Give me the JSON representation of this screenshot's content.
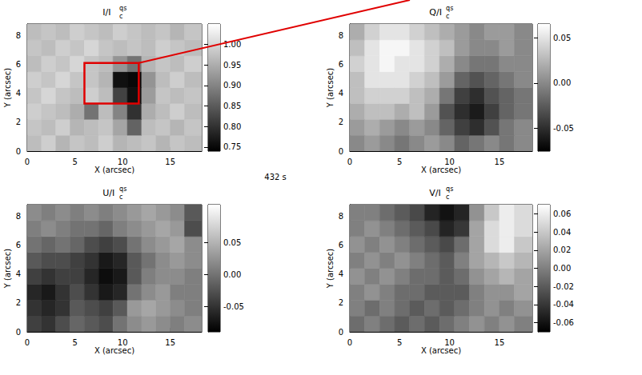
{
  "caption": "432 s",
  "chart_data": [
    {
      "type": "heatmap",
      "title": {
        "text": "I/I",
        "sub": "c",
        "sup": "qs"
      },
      "x_label": "X (arcsec)",
      "y_label": "Y (arcsec)",
      "color": "gray",
      "xlim": [
        0,
        18.3
      ],
      "ylim": [
        0,
        8.8
      ],
      "xticks": [
        0,
        5,
        10,
        15
      ],
      "yticks": [
        0,
        2,
        4,
        6,
        8
      ],
      "x_edges": [
        0,
        1.5,
        3,
        4.5,
        6,
        7.5,
        9,
        10.5,
        12,
        13.5,
        15,
        16.5,
        18.3
      ],
      "y_edges": [
        0,
        1.1,
        2.2,
        3.3,
        4.4,
        5.5,
        6.6,
        7.7,
        8.8
      ],
      "cells": [
        [
          0.97,
          0.99,
          0.96,
          0.98,
          0.97,
          0.99,
          0.96,
          0.97,
          0.98,
          0.96,
          0.98,
          0.97
        ],
        [
          0.98,
          0.97,
          0.99,
          0.96,
          0.97,
          0.98,
          0.94,
          0.86,
          0.97,
          0.98,
          0.96,
          0.98
        ],
        [
          0.99,
          0.98,
          0.97,
          0.95,
          0.88,
          0.97,
          0.9,
          0.8,
          0.95,
          0.97,
          0.99,
          0.97
        ],
        [
          0.98,
          1.0,
          0.98,
          0.97,
          0.99,
          0.97,
          0.82,
          0.76,
          0.93,
          0.98,
          0.97,
          0.98
        ],
        [
          0.99,
          0.98,
          1.0,
          0.98,
          0.98,
          0.96,
          0.76,
          0.75,
          0.92,
          0.97,
          0.99,
          0.97
        ],
        [
          0.97,
          0.99,
          0.98,
          1.0,
          0.98,
          0.97,
          0.92,
          0.88,
          0.96,
          0.98,
          0.97,
          0.99
        ],
        [
          0.98,
          0.97,
          0.99,
          0.98,
          1.0,
          0.98,
          0.97,
          0.98,
          0.97,
          0.99,
          0.98,
          0.97
        ],
        [
          0.97,
          0.98,
          0.97,
          0.99,
          0.98,
          0.97,
          0.99,
          0.98,
          0.97,
          0.98,
          0.96,
          0.98
        ]
      ],
      "colorbar": {
        "range": [
          0.74,
          1.05
        ],
        "ticks": [
          0.75,
          {
            "value": 0.8,
            "label": "0.80"
          },
          0.85,
          {
            "value": 0.9,
            "label": "0.90"
          },
          0.95,
          {
            "value": 1,
            "label": "1.00"
          }
        ]
      },
      "annotation": {
        "type": "box",
        "x": [
          6,
          11.7
        ],
        "y": [
          3.3,
          6.1
        ],
        "color": "#e00000"
      }
    },
    {
      "type": "heatmap",
      "title": {
        "text": "Q/I",
        "sub": "c",
        "sup": "qs"
      },
      "x_label": "X (arcsec)",
      "y_label": "Y (arcsec)",
      "color": "gray",
      "xlim": [
        0,
        18.3
      ],
      "ylim": [
        0,
        8.8
      ],
      "xticks": [
        0,
        5,
        10,
        15
      ],
      "yticks": [
        0,
        2,
        4,
        6,
        8
      ],
      "x_edges": [
        0,
        1.5,
        3,
        4.5,
        6,
        7.5,
        9,
        10.5,
        12,
        13.5,
        15,
        16.5,
        18.3
      ],
      "y_edges": [
        0,
        1.1,
        2.2,
        3.3,
        4.4,
        5.5,
        6.6,
        7.7,
        8.8
      ],
      "cells": [
        [
          0.0,
          0.01,
          0.0,
          -0.01,
          0.0,
          0.01,
          0.0,
          -0.02,
          -0.01,
          0.0,
          -0.01,
          0.0
        ],
        [
          0.01,
          0.02,
          0.01,
          0.0,
          0.01,
          0.0,
          -0.02,
          -0.04,
          -0.05,
          -0.03,
          -0.01,
          0.0
        ],
        [
          0.02,
          0.03,
          0.03,
          0.02,
          0.03,
          0.01,
          -0.03,
          -0.05,
          -0.06,
          -0.04,
          -0.02,
          -0.01
        ],
        [
          0.03,
          0.04,
          0.04,
          0.04,
          0.03,
          0.02,
          -0.01,
          -0.04,
          -0.05,
          -0.03,
          -0.02,
          -0.01
        ],
        [
          0.03,
          0.05,
          0.05,
          0.05,
          0.04,
          0.03,
          0.01,
          -0.02,
          -0.03,
          -0.02,
          -0.01,
          0.0
        ],
        [
          0.04,
          0.05,
          0.06,
          0.05,
          0.05,
          0.04,
          0.02,
          0.0,
          -0.01,
          -0.01,
          0.0,
          0.0
        ],
        [
          0.03,
          0.05,
          0.06,
          0.06,
          0.05,
          0.04,
          0.03,
          0.01,
          0.0,
          0.0,
          0.01,
          0.0
        ],
        [
          0.02,
          0.04,
          0.05,
          0.05,
          0.04,
          0.03,
          0.02,
          0.01,
          0.0,
          0.01,
          0.01,
          0.0
        ]
      ],
      "colorbar": {
        "range": [
          -0.075,
          0.065
        ],
        "ticks": [
          -0.05,
          {
            "value": 0,
            "label": "0.00"
          },
          0.05
        ]
      }
    },
    {
      "type": "heatmap",
      "title": {
        "text": "U/I",
        "sub": "c",
        "sup": "qs"
      },
      "x_label": "X (arcsec)",
      "y_label": "Y (arcsec)",
      "color": "gray",
      "xlim": [
        0,
        18.3
      ],
      "ylim": [
        0,
        8.8
      ],
      "xticks": [
        0,
        5,
        10,
        15
      ],
      "yticks": [
        0,
        2,
        4,
        6,
        8
      ],
      "x_edges": [
        0,
        1.5,
        3,
        4.5,
        6,
        7.5,
        9,
        10.5,
        12,
        13.5,
        15,
        16.5,
        18.3
      ],
      "y_edges": [
        0,
        1.1,
        2.2,
        3.3,
        4.4,
        5.5,
        6.6,
        7.7,
        8.8
      ],
      "cells": [
        [
          -0.04,
          -0.05,
          -0.03,
          -0.01,
          -0.02,
          -0.03,
          0.0,
          0.02,
          0.03,
          0.02,
          0.01,
          0.02
        ],
        [
          -0.05,
          -0.06,
          -0.05,
          -0.02,
          -0.03,
          -0.04,
          -0.02,
          0.03,
          0.04,
          0.03,
          0.02,
          0.01
        ],
        [
          -0.06,
          -0.07,
          -0.05,
          -0.03,
          -0.05,
          -0.07,
          -0.06,
          0.0,
          0.02,
          0.03,
          0.01,
          0.01
        ],
        [
          -0.04,
          -0.05,
          -0.04,
          -0.04,
          -0.06,
          -0.08,
          -0.07,
          -0.02,
          0.01,
          0.02,
          0.02,
          0.01
        ],
        [
          -0.02,
          -0.03,
          -0.03,
          -0.04,
          -0.05,
          -0.07,
          -0.06,
          -0.02,
          0.0,
          0.02,
          0.03,
          0.02
        ],
        [
          0.0,
          -0.01,
          0.0,
          -0.01,
          -0.03,
          -0.04,
          -0.03,
          0.0,
          0.02,
          0.03,
          0.04,
          0.02
        ],
        [
          0.01,
          0.02,
          0.01,
          0.0,
          0.0,
          -0.01,
          0.01,
          0.02,
          0.03,
          0.04,
          0.03,
          -0.03
        ],
        [
          0.02,
          0.01,
          0.02,
          0.01,
          0.02,
          0.01,
          0.02,
          0.03,
          0.04,
          0.03,
          0.02,
          -0.02
        ]
      ],
      "colorbar": {
        "range": [
          -0.09,
          0.11
        ],
        "ticks": [
          -0.05,
          {
            "value": 0,
            "label": "0.00"
          },
          0.05
        ]
      }
    },
    {
      "type": "heatmap",
      "title": {
        "text": "V/I",
        "sub": "c",
        "sup": "qs"
      },
      "x_label": "X (arcsec)",
      "y_label": "Y (arcsec)",
      "color": "gray",
      "xlim": [
        0,
        18.3
      ],
      "ylim": [
        0,
        8.8
      ],
      "xticks": [
        0,
        5,
        10,
        15
      ],
      "yticks": [
        0,
        2,
        4,
        6,
        8
      ],
      "x_edges": [
        0,
        1.5,
        3,
        4.5,
        6,
        7.5,
        9,
        10.5,
        12,
        13.5,
        15,
        16.5,
        18.3
      ],
      "y_edges": [
        0,
        1.1,
        2.2,
        3.3,
        4.4,
        5.5,
        6.6,
        7.7,
        8.8
      ],
      "cells": [
        [
          -0.01,
          0.0,
          -0.01,
          -0.02,
          -0.01,
          -0.02,
          -0.01,
          0.0,
          0.01,
          0.0,
          0.01,
          0.0
        ],
        [
          0.0,
          -0.01,
          0.0,
          -0.01,
          -0.02,
          -0.01,
          -0.02,
          -0.01,
          0.0,
          0.01,
          0.0,
          0.01
        ],
        [
          0.0,
          0.01,
          0.0,
          -0.01,
          -0.01,
          -0.02,
          -0.02,
          -0.02,
          0.0,
          0.01,
          0.01,
          0.02
        ],
        [
          0.01,
          0.0,
          0.01,
          0.0,
          -0.01,
          -0.01,
          -0.02,
          -0.01,
          0.01,
          0.02,
          0.03,
          0.02
        ],
        [
          0.0,
          0.01,
          0.0,
          0.01,
          0.0,
          -0.01,
          -0.02,
          0.0,
          0.02,
          0.03,
          0.04,
          0.03
        ],
        [
          0.01,
          0.0,
          0.01,
          0.0,
          -0.01,
          -0.02,
          -0.03,
          -0.01,
          0.02,
          0.05,
          0.06,
          0.04
        ],
        [
          0.0,
          0.01,
          0.0,
          -0.01,
          -0.02,
          -0.03,
          -0.05,
          -0.04,
          0.02,
          0.05,
          0.06,
          0.05
        ],
        [
          0.0,
          0.0,
          -0.01,
          -0.02,
          -0.03,
          -0.05,
          -0.06,
          -0.05,
          0.01,
          0.04,
          0.06,
          0.05
        ]
      ],
      "colorbar": {
        "range": [
          -0.07,
          0.07
        ],
        "ticks": [
          -0.06,
          -0.04,
          -0.02,
          {
            "value": 0,
            "label": "0.00"
          },
          0.02,
          0.04,
          0.06
        ]
      }
    }
  ]
}
